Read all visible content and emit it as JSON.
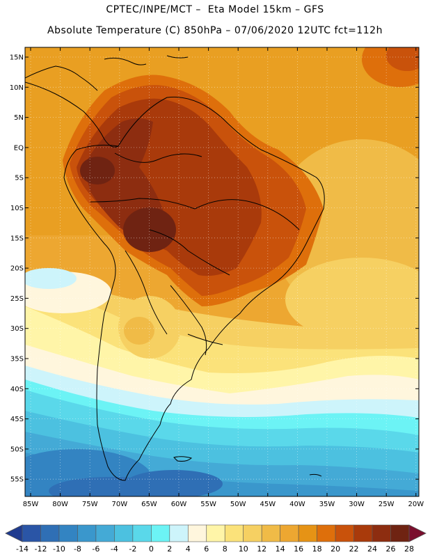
{
  "header": {
    "line1": "CPTEC/INPE/MCT –  Eta Model 15km – GFS",
    "line2": "Absolute Temperature (C) 850hPa – 07/06/2020 12UTC fct=112h"
  },
  "map": {
    "lat_labels": [
      "15N",
      "10N",
      "5N",
      "EQ",
      "5S",
      "10S",
      "15S",
      "20S",
      "25S",
      "30S",
      "35S",
      "40S",
      "45S",
      "50S",
      "55S"
    ],
    "lon_labels": [
      "85W",
      "80W",
      "75W",
      "70W",
      "65W",
      "60W",
      "55W",
      "50W",
      "45W",
      "40W",
      "35W",
      "30W",
      "25W",
      "20W"
    ]
  },
  "colorbar": {
    "labels": [
      "-14",
      "-12",
      "-10",
      "-8",
      "-6",
      "-4",
      "-2",
      "0",
      "2",
      "4",
      "6",
      "8",
      "10",
      "12",
      "14",
      "16",
      "18",
      "20",
      "22",
      "24",
      "26",
      "28"
    ],
    "colors": [
      "#1f3b8f",
      "#2a55a6",
      "#2f6fb5",
      "#3384c2",
      "#3a97cc",
      "#44aad6",
      "#4cc1e0",
      "#5ad8ea",
      "#6cf3f5",
      "#cdf4fb",
      "#fff6dd",
      "#fff5a8",
      "#fbe27a",
      "#f6d062",
      "#f0bb47",
      "#eda731",
      "#e69315",
      "#de6f0b",
      "#c9520b",
      "#a93a0b",
      "#8d2d10",
      "#6f2312",
      "#7a0e2d"
    ]
  }
}
